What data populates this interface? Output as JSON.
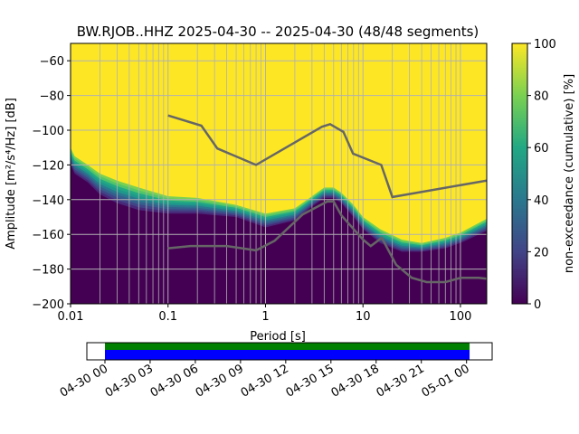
{
  "chart_data": {
    "type": "heatmap",
    "title": "BW.RJOB..HHZ   2025-04-30 -- 2025-04-30  (48/48 segments)",
    "xlabel": "Period [s]",
    "ylabel": "Amplitude [m²/s⁴/Hz] [dB]",
    "xscale": "log",
    "xlim": [
      0.01,
      186
    ],
    "ylim": [
      -200,
      -50
    ],
    "xticks": [
      0.01,
      0.1,
      1,
      10,
      100
    ],
    "xtick_labels": [
      "0.01",
      "0.1",
      "1",
      "10",
      "100"
    ],
    "yticks": [
      -60,
      -80,
      -100,
      -120,
      -140,
      -160,
      -180,
      -200
    ],
    "ytick_labels": [
      "−60",
      "−80",
      "−100",
      "−120",
      "−140",
      "−160",
      "−180",
      "−200"
    ],
    "grid": true,
    "pdf_lower_boundary": {
      "period": [
        0.01,
        0.011,
        0.015,
        0.02,
        0.03,
        0.05,
        0.1,
        0.2,
        0.5,
        1,
        2,
        3,
        4,
        5,
        6,
        8,
        10,
        15,
        25,
        40,
        70,
        100,
        186
      ],
      "db": [
        -120,
        -125,
        -130,
        -137,
        -142,
        -146,
        -148,
        -148,
        -150,
        -156,
        -152,
        -144,
        -139,
        -139,
        -142,
        -150,
        -157,
        -165,
        -170,
        -170,
        -168,
        -165,
        -158
      ]
    },
    "pdf_upper_boundary": {
      "period": [
        0.01,
        0.011,
        0.015,
        0.02,
        0.03,
        0.05,
        0.1,
        0.2,
        0.5,
        1,
        2,
        3,
        4,
        5,
        6,
        8,
        10,
        15,
        25,
        40,
        70,
        100,
        186
      ],
      "db": [
        -110,
        -115,
        -120,
        -125,
        -129,
        -133,
        -138,
        -139,
        -143,
        -148,
        -145,
        -138,
        -133,
        -133,
        -136,
        -143,
        -150,
        -157,
        -163,
        -165,
        -162,
        -159,
        -151
      ]
    },
    "nhnm": {
      "period": [
        0.1,
        0.22,
        0.32,
        0.8,
        3.8,
        4.6,
        6.3,
        7.9,
        15.4,
        20,
        186
      ],
      "db": [
        -91.5,
        -97.4,
        -110.5,
        -120,
        -98,
        -96.5,
        -101,
        -113.5,
        -120,
        -138.5,
        -129
      ]
    },
    "nlnm": {
      "period": [
        0.1,
        0.17,
        0.4,
        0.8,
        1.24,
        2.4,
        4.3,
        5.0,
        6,
        10,
        12,
        15.6,
        21.9,
        31.6,
        45,
        70,
        101,
        154,
        186
      ],
      "db": [
        -168,
        -166.7,
        -166.7,
        -169.2,
        -163.7,
        -148.6,
        -141.1,
        -141.1,
        -149,
        -163,
        -166.7,
        -162,
        -177.5,
        -185,
        -187.5,
        -187.5,
        -185,
        -185,
        -185.5
      ]
    },
    "colorbar": {
      "label": "non-exceedance (cumulative) [%]",
      "range": [
        0,
        100
      ],
      "ticks": [
        "0",
        "20",
        "40",
        "60",
        "80",
        "100"
      ]
    },
    "timeline": {
      "tick_labels": [
        "04-30 00",
        "04-30 03",
        "04-30 06",
        "04-30 09",
        "04-30 12",
        "04-30 15",
        "04-30 18",
        "04-30 21",
        "05-01 00"
      ],
      "coverage_start_hours": 0,
      "coverage_end_hours": 24.2,
      "axis_hours": [
        -1.2,
        25.7
      ],
      "colors": {
        "data": "#008000",
        "processed": "#0000ff"
      }
    }
  }
}
